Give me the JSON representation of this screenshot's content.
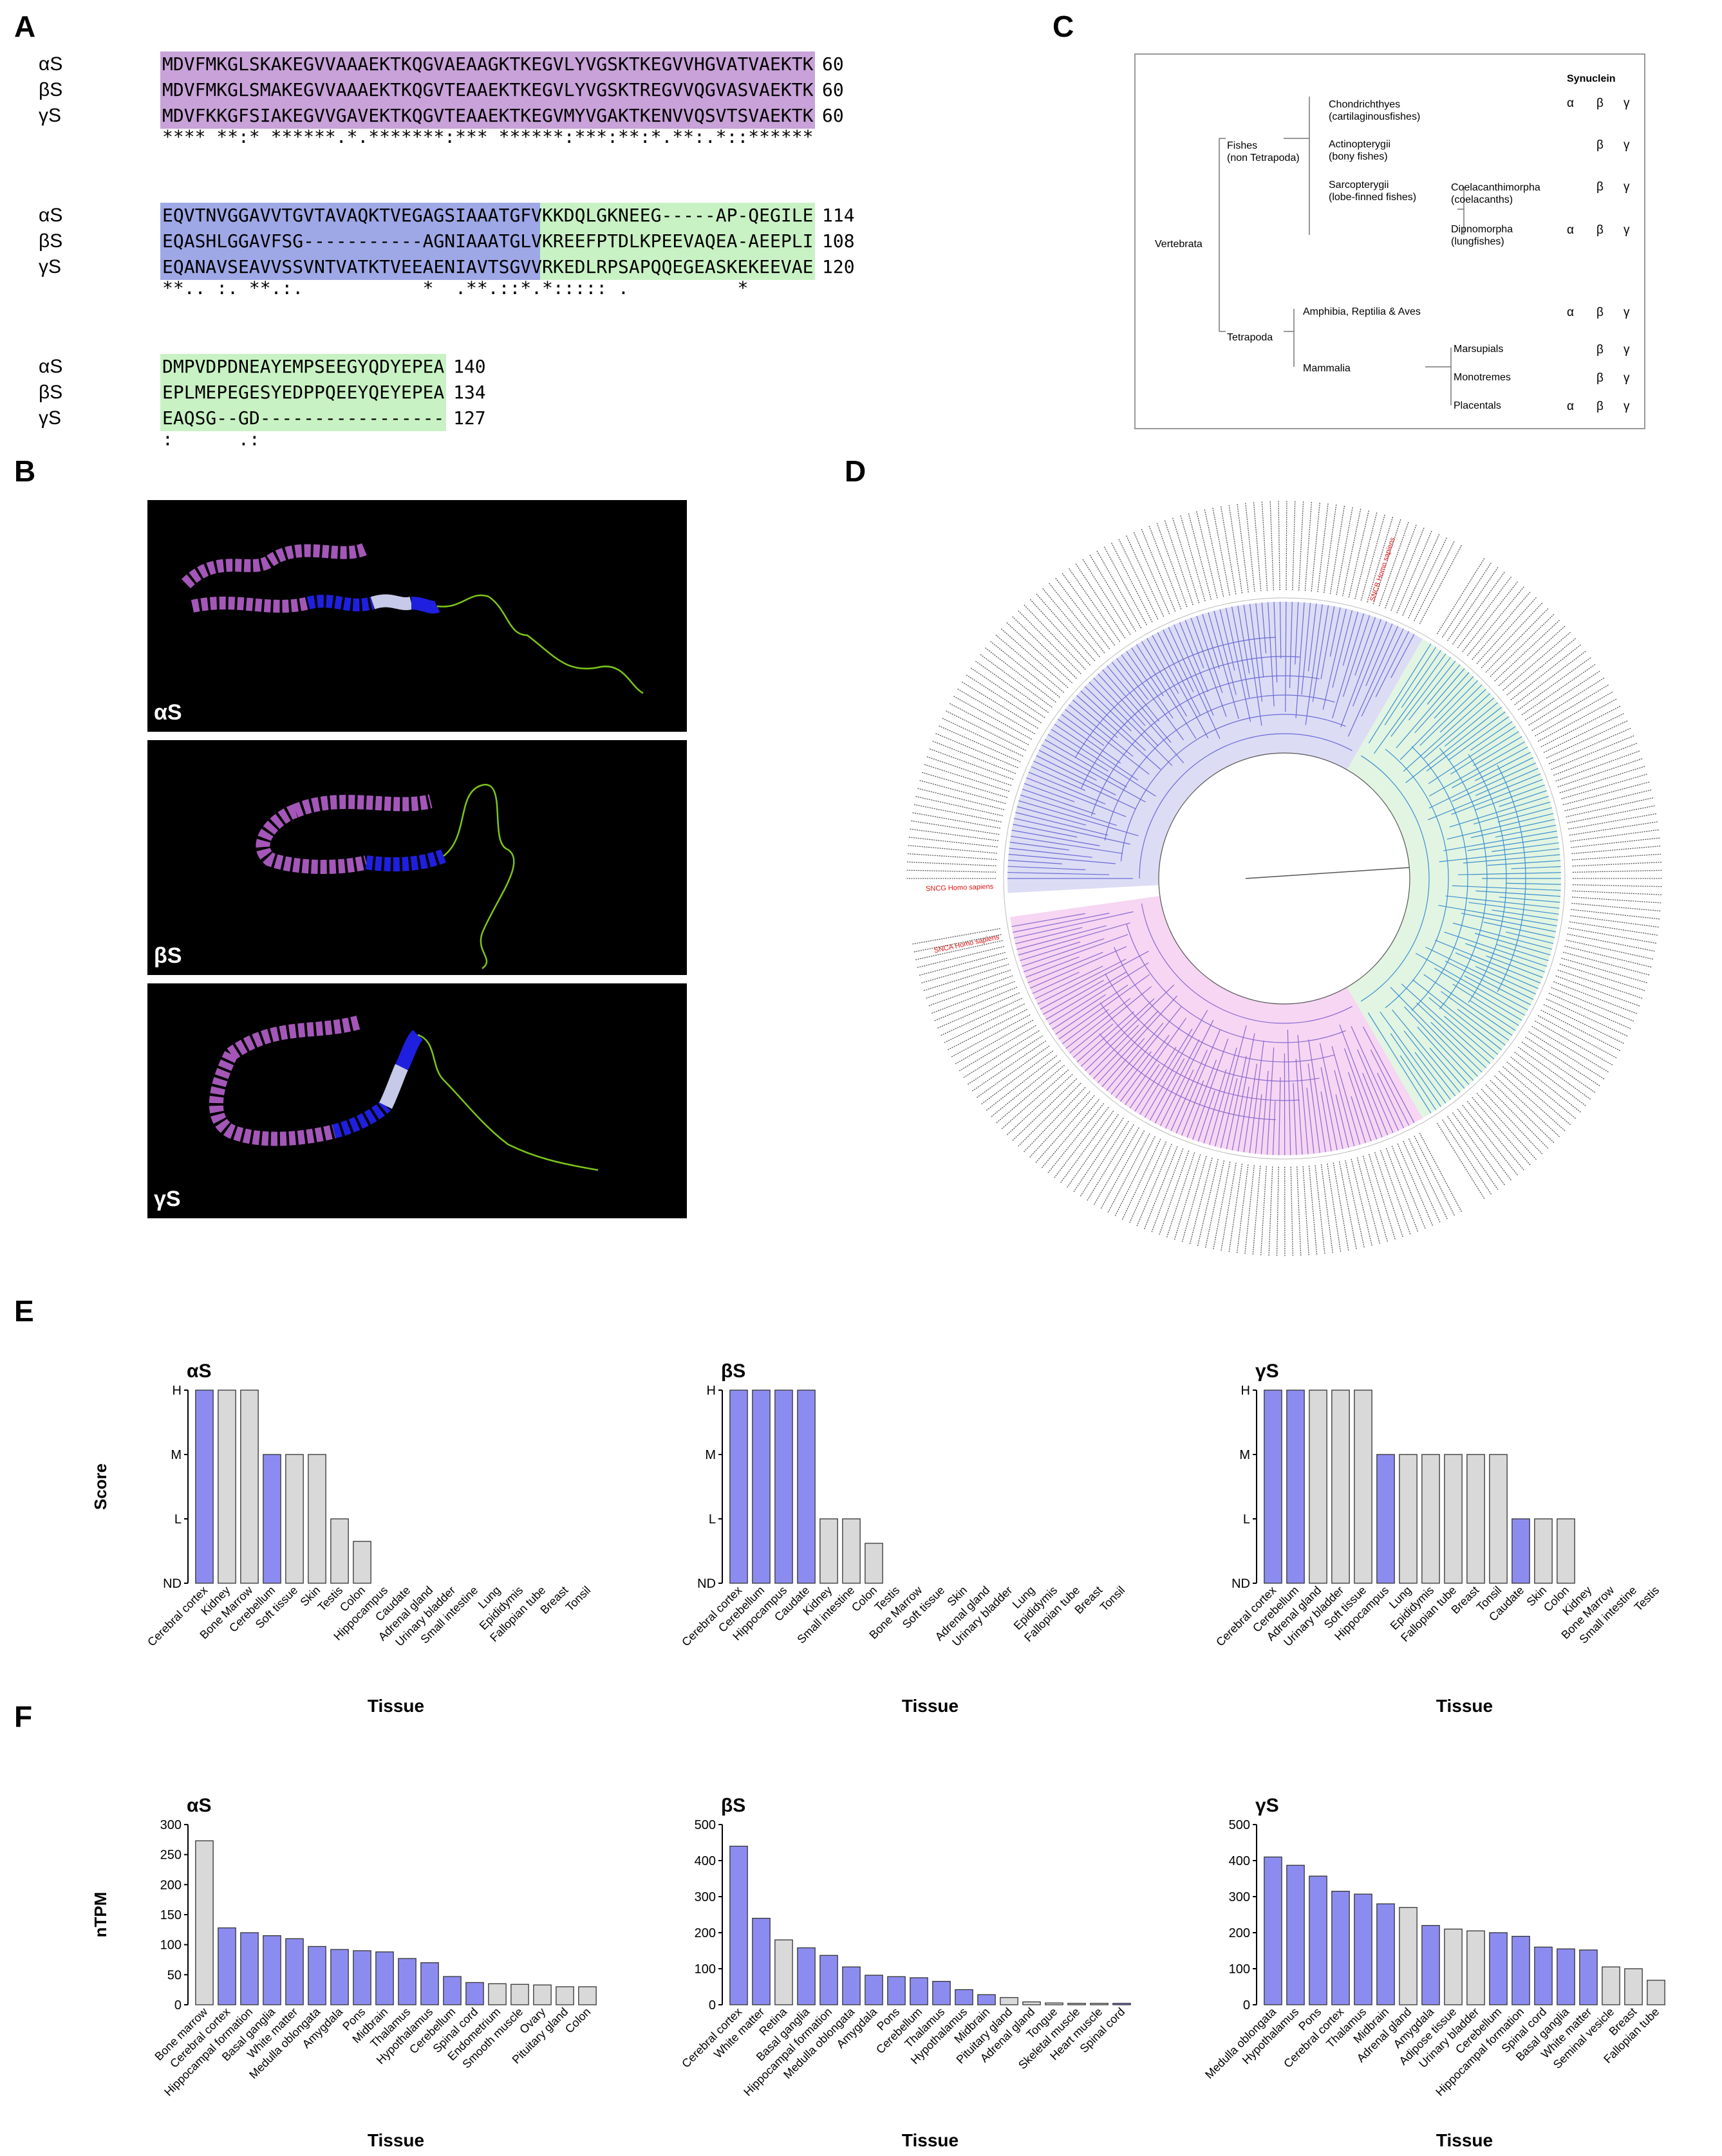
{
  "panel_labels": {
    "a": "A",
    "b": "B",
    "c": "C",
    "d": "D",
    "e": "E",
    "f": "F"
  },
  "alignment": {
    "blocks": [
      {
        "rows": [
          {
            "name": "αS",
            "seq": "MDVFMKGLSKAKEGVVAAAEKTKQGVAEAAGKTKEGVLYVGSKTKEGVVHGVATVAEKTK",
            "num": "60"
          },
          {
            "name": "βS",
            "seq": "MDVFMKGLSMAKEGVVAAAEKTKQGVTEAAEKTKEGVLYVGSKTREGVVQGVASVAEKTK",
            "num": "60"
          },
          {
            "name": "γS",
            "seq": "MDVFKKGFSIAKEGVVGAVEKTKQGVTEAAEKTKEGVMYVGAKTKENVVQSVTSVAEKTK",
            "num": "60"
          }
        ],
        "consensus": "**** **:* ******.*.*******:*** ******:***:**:*.**:.*::******"
      },
      {
        "rows": [
          {
            "name": "αS",
            "seq": "EQVTNVGGAVVTGVTAVAQKTVEGAGSIAAATGFVKKDQLGKNEEG-----AP-QEGILE",
            "num": "114"
          },
          {
            "name": "βS",
            "seq": "EQASHLGGAVFSG-----------AGNIAAATGLVKREEFPTDLKPEEVAQEA-AEEPLI",
            "num": "108"
          },
          {
            "name": "γS",
            "seq": "EQANAVSEAVVSSVNTVATKTVEEAENIAVTSGVVRKEDLRPSAPQQEGEASKEKEEVAE",
            "num": "120"
          }
        ],
        "consensus": "**.. :. **.:.           *  .**.::*.*::::: .          *"
      },
      {
        "rows": [
          {
            "name": "αS",
            "seq": "DMPVDPDNEAYEMPSEEGYQDYEPEA",
            "num": "140"
          },
          {
            "name": "βS",
            "seq": "EPLMEPEGESYEDPPQEEYQEYEPEA",
            "num": "134"
          },
          {
            "name": "γS",
            "seq": "EAQSG--GD-----------------",
            "num": "127"
          }
        ],
        "consensus": ":      .:"
      }
    ]
  },
  "taxonomy": {
    "header": "Synuclein",
    "vertebrata": "Vertebrata",
    "fishes": "Fishes\n(non Tetrapoda)",
    "tetrapoda": "Tetrapoda",
    "chondrichthyes": "Chondrichthyes\n(cartilaginousfishes)",
    "actinopterygii": "Actinopterygii\n(bony fishes)",
    "sarcopterygii": "Sarcopterygii\n(lobe-finned fishes)",
    "coelacanthimorpha": "Coelacanthimorpha\n(coelacanths)",
    "dipnomorpha": "Dipnomorpha\n(lungfishes)",
    "amphibia": "Amphibia, Reptilia & Aves",
    "mammalia": "Mammalia",
    "marsupials": "Marsupials",
    "monotremes": "Monotremes",
    "placentals": "Placentals",
    "rows": [
      {
        "a": "α",
        "b": "β",
        "g": "γ"
      },
      {
        "a": "",
        "b": "β",
        "g": "γ"
      },
      {
        "a": "",
        "b": "β",
        "g": "γ"
      },
      {
        "a": "α",
        "b": "β",
        "g": "γ"
      },
      {
        "a": "α",
        "b": "β",
        "g": "γ"
      },
      {
        "a": "",
        "b": "β",
        "g": "γ"
      },
      {
        "a": "",
        "b": "β",
        "g": "γ"
      },
      {
        "a": "α",
        "b": "β",
        "g": "γ"
      }
    ]
  },
  "structures": [
    {
      "label": "αS"
    },
    {
      "label": "βS"
    },
    {
      "label": "γS"
    }
  ],
  "tree": {
    "highlighted": [
      "SNCB Homo sapiens",
      "SNCA Homo sapiens",
      "SNCG Homo sapiens"
    ]
  },
  "colors": {
    "violet": "#c8a2d8",
    "blue": "#9fa8e6",
    "green": "#c9f2c4",
    "bar_brain": "#8c8cf0",
    "bar_other": "#d9d9d9"
  },
  "chart_data": [
    {
      "id": "E-alpha",
      "type": "bar",
      "title": "αS",
      "xlabel": "Tissue",
      "ylabel": "Score",
      "yticks": [
        "ND",
        "L",
        "M",
        "H"
      ],
      "ylim": [
        0,
        3
      ],
      "categories": [
        "Cerebral cortex",
        "Kidney",
        "Bone Marrow",
        "Cerebellum",
        "Soft tissue",
        "Skin",
        "Testis",
        "Colon",
        "Hippocampus",
        "Caudate",
        "Adrenal gland",
        "Urinary bladder",
        "Small intestine",
        "Lung",
        "Epididymis",
        "Fallopian tube",
        "Breast",
        "Tonsil"
      ],
      "values": [
        3,
        3,
        3,
        2,
        2,
        2,
        1,
        0.65,
        0,
        0,
        0,
        0,
        0,
        0,
        0,
        0,
        0,
        0
      ],
      "brain": [
        1,
        0,
        0,
        1,
        0,
        0,
        0,
        0,
        0,
        0,
        0,
        0,
        0,
        0,
        0,
        0,
        0,
        0
      ]
    },
    {
      "id": "E-beta",
      "type": "bar",
      "title": "βS",
      "xlabel": "Tissue",
      "ylabel": "",
      "yticks": [
        "ND",
        "L",
        "M",
        "H"
      ],
      "ylim": [
        0,
        3
      ],
      "categories": [
        "Cerebral cortex",
        "Cerebellum",
        "Hippocampus",
        "Caudate",
        "Kidney",
        "Small intestine",
        "Colon",
        "Testis",
        "Bone Marrow",
        "Soft tissue",
        "Skin",
        "Adrenal gland",
        "Urinary bladder",
        "Lung",
        "Epididymis",
        "Fallopian tube",
        "Breast",
        "Tonsil"
      ],
      "values": [
        3,
        3,
        3,
        3,
        1,
        1,
        0.62,
        0,
        0,
        0,
        0,
        0,
        0,
        0,
        0,
        0,
        0,
        0
      ],
      "brain": [
        1,
        1,
        1,
        1,
        0,
        0,
        0,
        0,
        0,
        0,
        0,
        0,
        0,
        0,
        0,
        0,
        0,
        0
      ]
    },
    {
      "id": "E-gamma",
      "type": "bar",
      "title": "γS",
      "xlabel": "Tissue",
      "ylabel": "",
      "yticks": [
        "ND",
        "L",
        "M",
        "H"
      ],
      "ylim": [
        0,
        3
      ],
      "categories": [
        "Cerebral cortex",
        "Cerebellum",
        "Adrenal gland",
        "Urinary bladder",
        "Soft tissue",
        "Hippocampus",
        "Lung",
        "Epididymis",
        "Fallopian tube",
        "Breast",
        "Tonsil",
        "Caudate",
        "Skin",
        "Colon",
        "Kidney",
        "Bone Marrow",
        "Small intestine",
        "Testis"
      ],
      "values": [
        3,
        3,
        3,
        3,
        3,
        2,
        2,
        2,
        2,
        2,
        2,
        1,
        1,
        1,
        0,
        0,
        0,
        0
      ],
      "brain": [
        1,
        1,
        0,
        0,
        0,
        1,
        0,
        0,
        0,
        0,
        0,
        1,
        0,
        0,
        0,
        0,
        0,
        0
      ]
    },
    {
      "id": "F-alpha",
      "type": "bar",
      "title": "αS",
      "xlabel": "Tissue",
      "ylabel": "nTPM",
      "ylim": [
        0,
        300
      ],
      "yticks": [
        "0",
        "50",
        "100",
        "150",
        "200",
        "250",
        "300"
      ],
      "tickvals": [
        0,
        50,
        100,
        150,
        200,
        250,
        300
      ],
      "categories": [
        "Bone marrow",
        "Cerebral cortex",
        "Hippocampal formation",
        "Basal ganglia",
        "White matter",
        "Medulla oblongata",
        "Amygdala",
        "Pons",
        "Midbrain",
        "Thalamus",
        "Hypothalamus",
        "Cerebellum",
        "Spinal cord",
        "Endometrium",
        "Smooth muscle",
        "Ovary",
        "Pituitary gland",
        "Colon"
      ],
      "values": [
        273,
        128,
        120,
        115,
        110,
        97,
        92,
        90,
        88,
        77,
        70,
        47,
        37,
        35,
        34,
        33,
        30,
        30
      ],
      "brain": [
        0,
        1,
        1,
        1,
        1,
        1,
        1,
        1,
        1,
        1,
        1,
        1,
        1,
        0,
        0,
        0,
        0,
        0
      ]
    },
    {
      "id": "F-beta",
      "type": "bar",
      "title": "βS",
      "xlabel": "Tissue",
      "ylabel": "",
      "ylim": [
        0,
        500
      ],
      "yticks": [
        "0",
        "100",
        "200",
        "300",
        "400",
        "500"
      ],
      "tickvals": [
        0,
        100,
        200,
        300,
        400,
        500
      ],
      "categories": [
        "Cerebral cortex",
        "White matter",
        "Retina",
        "Basal ganglia",
        "Hippocampal formation",
        "Medulla oblongata",
        "Amygdala",
        "Pons",
        "Cerebellum",
        "Thalamus",
        "Hypothalamus",
        "Midbrain",
        "Pituitary gland",
        "Adrenal gland",
        "Tongue",
        "Skeletal muscle",
        "Heart muscle",
        "Spinal cord"
      ],
      "values": [
        440,
        240,
        180,
        158,
        137,
        105,
        82,
        78,
        75,
        65,
        42,
        28,
        20,
        8,
        5,
        4,
        4,
        4
      ],
      "brain": [
        1,
        1,
        0,
        1,
        1,
        1,
        1,
        1,
        1,
        1,
        1,
        1,
        0,
        0,
        0,
        0,
        0,
        1
      ]
    },
    {
      "id": "F-gamma",
      "type": "bar",
      "title": "γS",
      "xlabel": "Tissue",
      "ylabel": "",
      "ylim": [
        0,
        500
      ],
      "yticks": [
        "0",
        "100",
        "200",
        "300",
        "400",
        "500"
      ],
      "tickvals": [
        0,
        100,
        200,
        300,
        400,
        500
      ],
      "categories": [
        "Medulla oblongata",
        "Hypothalamus",
        "Pons",
        "Cerebral cortex",
        "Thalamus",
        "Midbrain",
        "Adrenal gland",
        "Amygdala",
        "Adipose tissue",
        "Urinary bladder",
        "Cerebellum",
        "Hippocampal formation",
        "Spinal cord",
        "Basal ganglia",
        "White matter",
        "Seminal vesicle",
        "Breast",
        "Fallopian tube"
      ],
      "values": [
        410,
        387,
        357,
        315,
        307,
        280,
        270,
        220,
        210,
        205,
        200,
        190,
        160,
        155,
        152,
        105,
        100,
        68
      ],
      "brain": [
        1,
        1,
        1,
        1,
        1,
        1,
        0,
        1,
        0,
        0,
        1,
        1,
        1,
        1,
        1,
        0,
        0,
        0
      ]
    }
  ]
}
